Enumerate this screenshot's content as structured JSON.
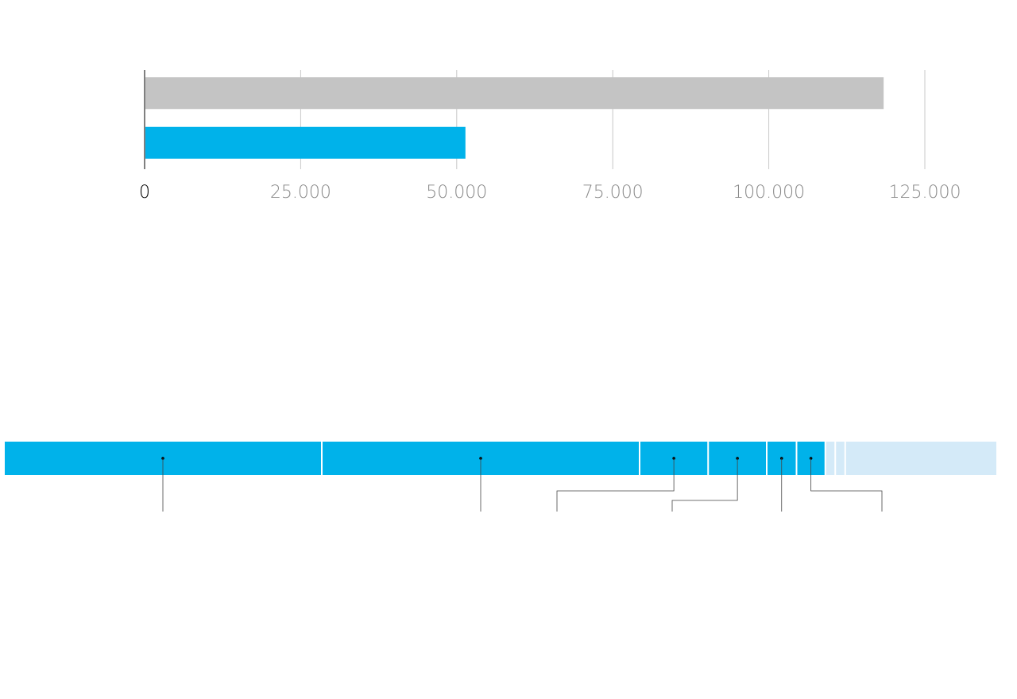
{
  "chart_data": [
    {
      "type": "bar",
      "categories": [
        null,
        null
      ],
      "values": [
        118400,
        51400
      ],
      "colors": [
        "#c4c4c4",
        "#00b2ea"
      ],
      "xlim": [
        0,
        125000
      ],
      "xticks": [
        0,
        {
          "value": 25000,
          "label": "25.000"
        },
        {
          "value": 50000,
          "label": "50.000"
        },
        {
          "value": 75000,
          "label": "75.000"
        },
        {
          "value": 100000,
          "label": "100.000"
        },
        {
          "value": 125000,
          "label": "125.000"
        }
      ],
      "grid": true
    },
    {
      "type": "stacked-bar",
      "categories": [
        null,
        null,
        null,
        null,
        null,
        null,
        null,
        null,
        null
      ],
      "values": [
        32,
        32,
        6.9,
        5.9,
        3,
        2.9,
        1,
        1,
        15.3
      ],
      "colors": [
        "#00b2ea",
        "#00b2ea",
        "#00b2ea",
        "#00b2ea",
        "#00b2ea",
        "#00b2ea",
        "#d4eaf8",
        "#d4eaf8",
        "#d4eaf8"
      ],
      "xlim": [
        0,
        100
      ]
    }
  ]
}
